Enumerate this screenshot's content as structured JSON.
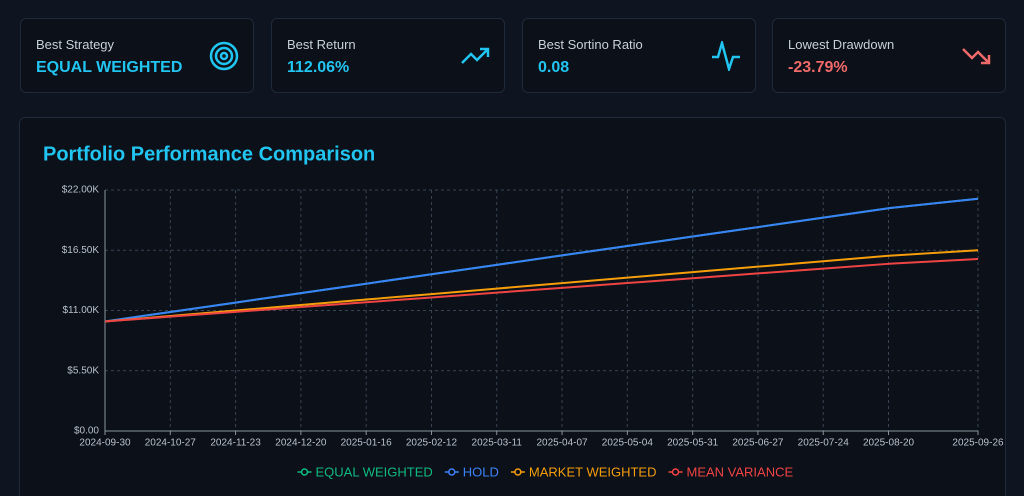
{
  "cards": [
    {
      "label": "Best Strategy",
      "value": "EQUAL WEIGHTED"
    },
    {
      "label": "Best Return",
      "value": "112.06%"
    },
    {
      "label": "Best Sortino Ratio",
      "value": "0.08"
    },
    {
      "label": "Lowest Drawdown",
      "value": "-23.79%"
    }
  ],
  "chart_data": {
    "type": "line",
    "title": "Portfolio Performance Comparison",
    "x": [
      "2024-09-30",
      "2024-10-27",
      "2024-11-23",
      "2024-12-20",
      "2025-01-16",
      "2025-02-12",
      "2025-03-11",
      "2025-04-07",
      "2025-05-04",
      "2025-05-31",
      "2025-06-27",
      "2025-07-24",
      "2025-08-20",
      "2025-09-26"
    ],
    "series": [
      {
        "name": "EQUAL WEIGHTED",
        "color": "#10b981",
        "values": [
          10000,
          10862,
          11723,
          12585,
          13446,
          14308,
          15169,
          16031,
          16892,
          17754,
          18615,
          19477,
          20338,
          21200
        ]
      },
      {
        "name": "HOLD",
        "color": "#3b82f6",
        "values": [
          10000,
          10862,
          11723,
          12585,
          13446,
          14308,
          15169,
          16031,
          16892,
          17754,
          18615,
          19477,
          20338,
          21200
        ]
      },
      {
        "name": "MARKET WEIGHTED",
        "color": "#f59e0b",
        "values": [
          10000,
          10500,
          11000,
          11500,
          12000,
          12500,
          13000,
          13500,
          14000,
          14500,
          15000,
          15500,
          16000,
          16500
        ]
      },
      {
        "name": "MEAN VARIANCE",
        "color": "#ef4444",
        "values": [
          10000,
          10438,
          10877,
          11315,
          11754,
          12192,
          12631,
          13069,
          13508,
          13946,
          14385,
          14823,
          15262,
          15700
        ]
      }
    ],
    "ylim": [
      0,
      22000
    ],
    "yticks": [
      {
        "value": 0,
        "label": "$0.00"
      },
      {
        "value": 5500,
        "label": "$5.50K"
      },
      {
        "value": 11000,
        "label": "$11.00K"
      },
      {
        "value": 16500,
        "label": "$16.50K"
      },
      {
        "value": 22000,
        "label": "$22.00K"
      }
    ],
    "grid": true
  }
}
